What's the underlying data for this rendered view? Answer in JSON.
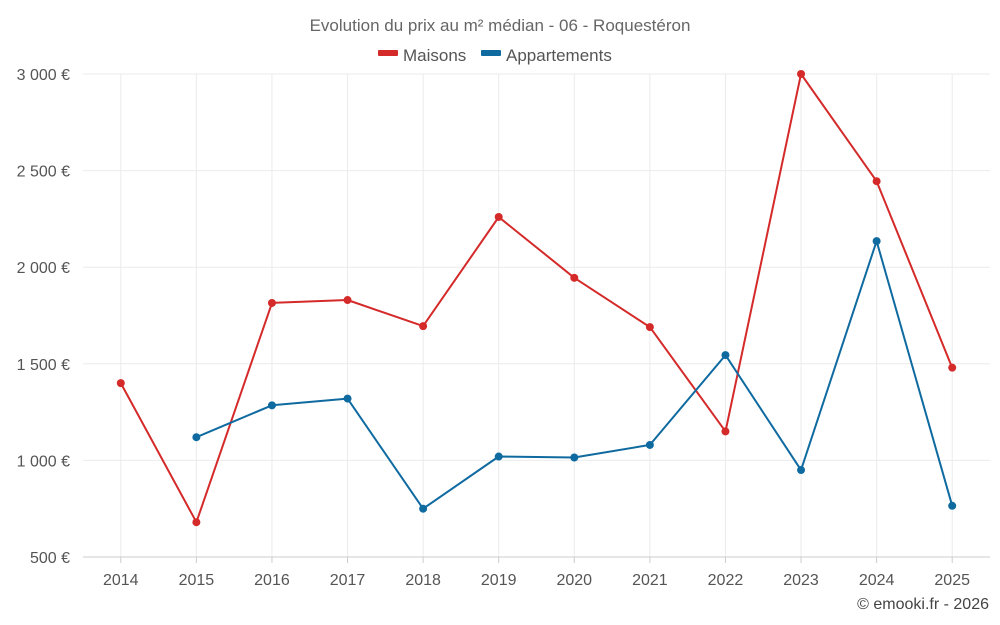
{
  "chart_data": {
    "type": "line",
    "title": "Evolution du prix au m² médian - 06 - Roquestéron",
    "categories": [
      "2014",
      "2015",
      "2016",
      "2017",
      "2018",
      "2019",
      "2020",
      "2021",
      "2022",
      "2023",
      "2024",
      "2025"
    ],
    "series": [
      {
        "name": "Maisons",
        "color": "#d42a2a",
        "values": [
          1400,
          680,
          1815,
          1830,
          1695,
          2260,
          1945,
          1690,
          1150,
          3000,
          2445,
          1480
        ]
      },
      {
        "name": "Appartements",
        "color": "#0f6aa0",
        "values": [
          null,
          1120,
          1285,
          1320,
          750,
          1020,
          1015,
          1080,
          1545,
          950,
          2135,
          765
        ]
      }
    ],
    "ylim": [
      500,
      3000
    ],
    "yticks": [
      500,
      1000,
      1500,
      2000,
      2500,
      3000
    ],
    "ytick_labels": [
      "500 €",
      "1 000 €",
      "1 500 €",
      "2 000 €",
      "2 500 €",
      "3 000 €"
    ],
    "xlabel": "",
    "ylabel": "",
    "grid": true,
    "legend_position": "top-center"
  },
  "credit": "© emooki.fr - 2026"
}
